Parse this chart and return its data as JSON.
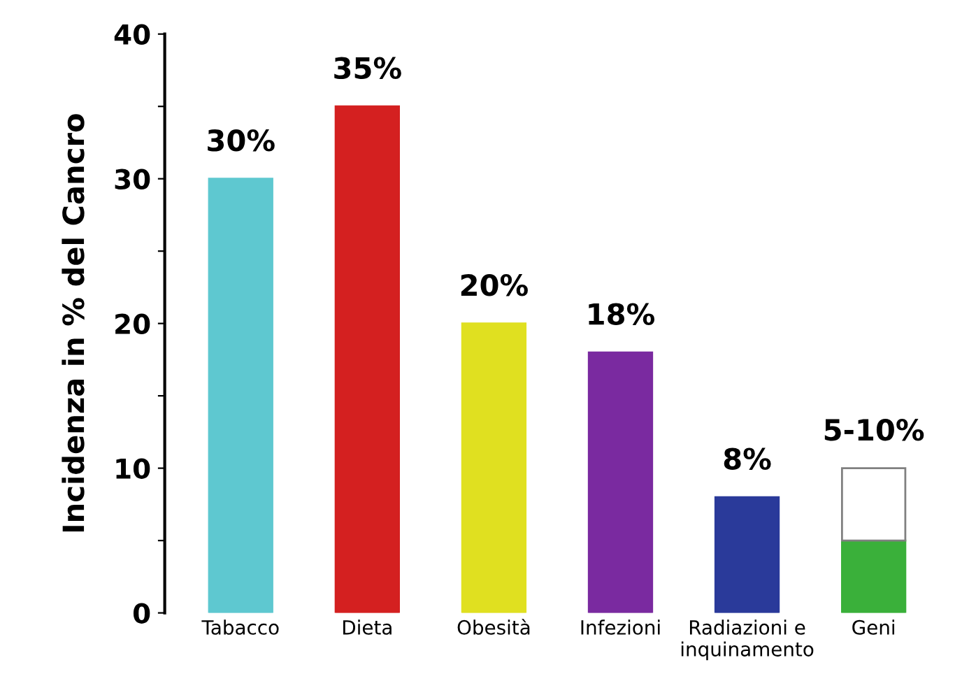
{
  "chart_data": {
    "type": "bar",
    "ylabel": "Incidenza in % del Cancro",
    "categories": [
      "Tabacco",
      "Dieta",
      "Obesità",
      "Infezioni",
      "Radiazioni e\ninquinamento",
      "Geni"
    ],
    "stacked": true,
    "series": [
      {
        "colors": [
          "#5ec8d0",
          "#d42020",
          "#e0e020",
          "#7a2aa0",
          "#2a3a9a",
          "#3ab03a"
        ],
        "values": [
          30,
          35,
          20,
          18,
          8,
          5
        ]
      },
      {
        "color": "#ffffff",
        "values": [
          null,
          null,
          null,
          null,
          null,
          5
        ]
      }
    ],
    "totals": [
      "30%",
      "35%",
      "20%",
      "18%",
      "8%",
      "5-10%"
    ],
    "ylim": [
      0,
      40
    ],
    "yticks": [
      0,
      {
        "value": 5,
        "label": null
      },
      10,
      {
        "value": 15,
        "label": null
      },
      20,
      {
        "value": 25,
        "label": null
      },
      30,
      {
        "value": 35,
        "label": null
      },
      40
    ],
    "grid": false,
    "legend": false
  }
}
